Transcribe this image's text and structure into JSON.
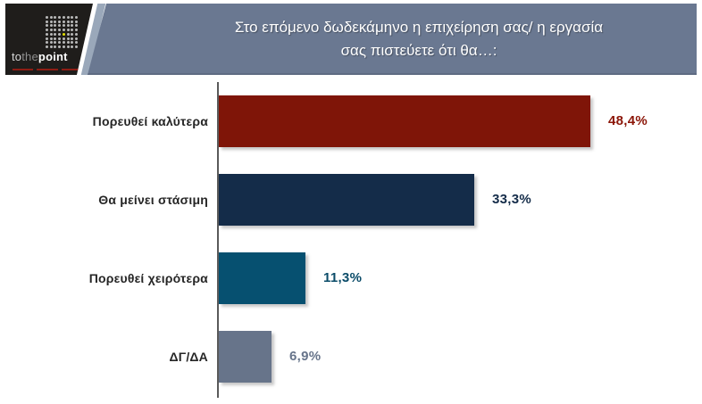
{
  "header": {
    "title_line1": "Στο επόμενο δωδεκάμηνο η επιχείρηση σας/ η εργασία",
    "title_line2": "σας  πιστεύετε ότι θα…:",
    "background": "#6a7891",
    "logo": {
      "text_to": "to",
      "text_the": "the",
      "text_point": "point",
      "background": "#1f1d1b",
      "dot_color": "#b9b9b9",
      "accent_dot_color": "#e3df00",
      "grid_rows": 8,
      "grid_cols": 8,
      "accent_row": 5,
      "accent_col": 5
    }
  },
  "chart_data": {
    "type": "bar",
    "orientation": "horizontal",
    "title": "Στο επόμενο δωδεκάμηνο η επιχείρηση σας/ η εργασία σας πιστεύετε ότι θα…:",
    "categories": [
      "Πορευθεί καλύτερα",
      "Θα μείνει στάσιμη",
      "Πορευθεί χειρότερα",
      "ΔΓ/ΔΑ"
    ],
    "values": [
      48.4,
      33.3,
      11.3,
      6.9
    ],
    "value_labels": [
      "48,4%",
      "33,3%",
      "11,3%",
      "6,9%"
    ],
    "bar_colors": [
      "#7f1508",
      "#142c49",
      "#065070",
      "#67748a"
    ],
    "label_colors": [
      "#8b1507",
      "#142c49",
      "#0b4c69",
      "#67748a"
    ],
    "axis_color": "#5a5a5a",
    "xlim": [
      0,
      55
    ],
    "grid": false,
    "legend": false
  }
}
